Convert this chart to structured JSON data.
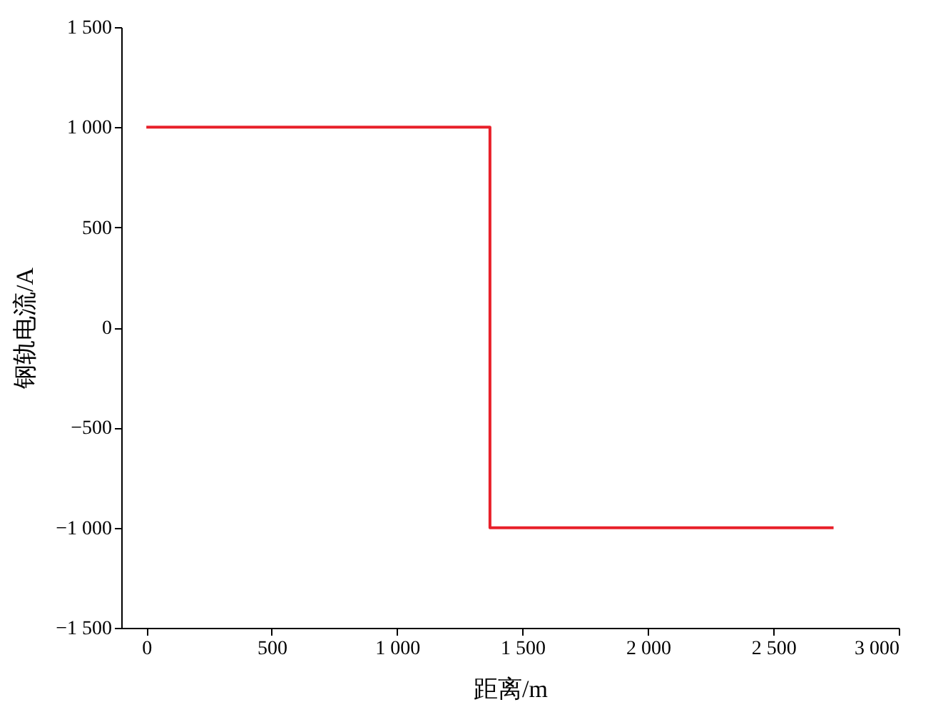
{
  "chart_data": {
    "type": "step",
    "xlabel": "距离/m",
    "ylabel": "钢轨电流/A",
    "x": [
      0,
      1370,
      2740
    ],
    "series": [
      {
        "color": "#e8202a",
        "values": [
          1000,
          -1000,
          -1000
        ]
      }
    ],
    "xlim": [
      -100,
      3000
    ],
    "xticks": [
      0,
      500,
      {
        "value": 1000,
        "label": "1 000"
      },
      {
        "value": 1500,
        "label": "1 500"
      },
      {
        "value": 2000,
        "label": "2 000"
      },
      {
        "value": 2500,
        "label": "2 500"
      },
      {
        "value": 3000,
        "label": "3 000"
      }
    ],
    "ylim": [
      -1500,
      1500
    ],
    "yticks": [
      {
        "value": -1500,
        "label": "−1 500"
      },
      {
        "value": -1000,
        "label": "−1 000"
      },
      {
        "value": -500,
        "label": "−500"
      },
      0,
      500,
      {
        "value": 1000,
        "label": "1 000"
      },
      {
        "value": 1500,
        "label": "1 500"
      }
    ],
    "grid": false
  }
}
